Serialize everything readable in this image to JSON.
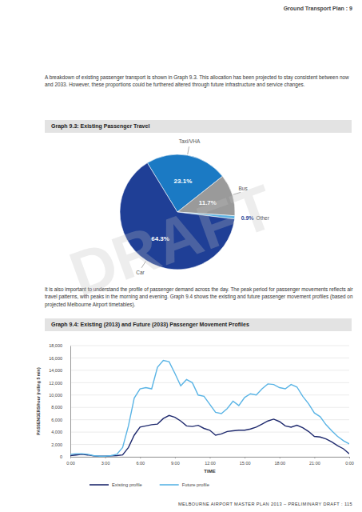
{
  "header": "Ground Transport Plan : 9",
  "paragraphs": [
    "A breakdown of existing passenger transport is shown in Graph 9.3. This allocation has been projected to stay consistent between now and 2033. However, these proportions could be furthered altered through future infrastructure and service changes.",
    "It is also important to understand the profile of passenger demand across the day. The peak period for passenger movements reflects air travel patterns, with peaks in the morning and evening. Graph 9.4 shows the existing and future passenger movement profiles (based on projected Melbourne Airport timetables)."
  ],
  "watermark": "DRAFT",
  "chart_data": [
    {
      "type": "pie",
      "title": "Graph 9.3: Existing Passenger Travel",
      "categories": [
        "Taxi/VHA",
        "Bus",
        "Other",
        "Car"
      ],
      "values": [
        23.1,
        11.7,
        0.9,
        64.3
      ],
      "value_labels": [
        "23.1%",
        "11.7%",
        "0.9%",
        "64.3%"
      ],
      "colors": [
        "#1b7ac4",
        "#9a9a9a",
        "#5db3e3",
        "#1f3f96"
      ],
      "data_labels": true
    },
    {
      "type": "line",
      "title": "Graph 9.4: Existing (2013) and Future (2033) Passenger Movement Profiles",
      "xlabel": "TIME",
      "ylabel": "PASSENGERS/hour (rolling 5 min)",
      "x": [
        0,
        0.5,
        1,
        1.5,
        2,
        2.5,
        3,
        3.5,
        4,
        4.5,
        5,
        5.5,
        6,
        6.5,
        7,
        7.5,
        8,
        8.5,
        9,
        9.5,
        10,
        10.5,
        11,
        11.5,
        12,
        12.5,
        13,
        13.5,
        14,
        14.5,
        15,
        15.5,
        16,
        16.5,
        17,
        17.5,
        18,
        18.5,
        19,
        19.5,
        20,
        20.5,
        21,
        21.5,
        22,
        22.5,
        23,
        23.5,
        24
      ],
      "series": [
        {
          "name": "Existing profile",
          "color": "#1f2a6e",
          "values": [
            200,
            300,
            400,
            300,
            150,
            100,
            100,
            150,
            200,
            300,
            1500,
            3500,
            4800,
            5000,
            5200,
            5300,
            6200,
            6700,
            6400,
            5800,
            5000,
            4900,
            5100,
            4600,
            4300,
            3500,
            3700,
            4100,
            4200,
            4300,
            4300,
            4500,
            4800,
            5300,
            5800,
            6100,
            5700,
            5000,
            4800,
            5100,
            4700,
            4100,
            3300,
            3200,
            2900,
            2400,
            1800,
            1300,
            500
          ]
        },
        {
          "name": "Future profile",
          "color": "#5ab4e5",
          "values": [
            400,
            500,
            500,
            400,
            200,
            100,
            100,
            200,
            400,
            1500,
            5000,
            9500,
            11000,
            11200,
            11000,
            14500,
            15600,
            15400,
            13500,
            11500,
            12500,
            12000,
            10000,
            9800,
            8500,
            7200,
            7000,
            7800,
            9000,
            8300,
            9600,
            10200,
            10000,
            11000,
            11800,
            11700,
            11200,
            11000,
            11700,
            11300,
            9800,
            8600,
            7100,
            6500,
            5200,
            4200,
            3300,
            2600,
            2100
          ]
        }
      ],
      "xlim": [
        0,
        24
      ],
      "xticks": [
        {
          "value": 0,
          "label": "0:00"
        },
        {
          "value": 3,
          "label": "3:00"
        },
        {
          "value": 6,
          "label": "6:00"
        },
        {
          "value": 9,
          "label": "9:00"
        },
        {
          "value": 12,
          "label": "12:00"
        },
        {
          "value": 15,
          "label": "15:00"
        },
        {
          "value": 18,
          "label": "18:00"
        },
        {
          "value": 21,
          "label": "21:00"
        },
        {
          "value": 24,
          "label": "0:00"
        }
      ],
      "ylim": [
        0,
        18000
      ],
      "yticks": [
        0,
        {
          "value": 2000,
          "label": "2,000"
        },
        {
          "value": 4000,
          "label": "4,000"
        },
        {
          "value": 6000,
          "label": "6,000"
        },
        {
          "value": 8000,
          "label": "8,000"
        },
        {
          "value": 10000,
          "label": "10,000"
        },
        {
          "value": 12000,
          "label": "12,000"
        },
        {
          "value": 14000,
          "label": "14,000"
        },
        {
          "value": 16000,
          "label": "16,000"
        },
        {
          "value": 18000,
          "label": "18,000"
        }
      ],
      "grid": true,
      "legend": "bottom"
    }
  ],
  "footer": "MELBOURNE AIRPORT MASTER PLAN 2013 – PRELIMINARY DRAFT : 115"
}
